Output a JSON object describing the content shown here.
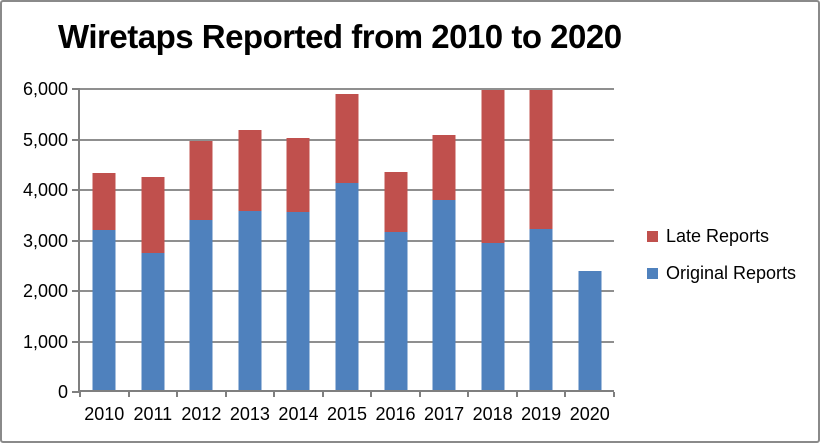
{
  "window": {
    "background": "#ffffff",
    "border_color": "#8a8a8a"
  },
  "chart_data": {
    "type": "bar",
    "stacked": true,
    "title": "Wiretaps Reported from 2010 to 2020",
    "categories": [
      "2010",
      "2011",
      "2012",
      "2013",
      "2014",
      "2015",
      "2016",
      "2017",
      "2018",
      "2019",
      "2020"
    ],
    "series": [
      {
        "name": "Original Reports",
        "color": "#4F81BD",
        "values": [
          3200,
          2750,
          3400,
          3580,
          3560,
          4130,
          3160,
          3810,
          2950,
          3220,
          2390
        ]
      },
      {
        "name": "Late Reports",
        "color": "#C0504D",
        "values": [
          1130,
          1500,
          1570,
          1610,
          1470,
          1770,
          1200,
          1280,
          3050,
          2780,
          0
        ]
      }
    ],
    "legend": [
      {
        "label": "Late Reports",
        "color": "#C0504D"
      },
      {
        "label": "Original Reports",
        "color": "#4F81BD"
      }
    ],
    "legend_position": "right",
    "xlabel": "",
    "ylabel": "",
    "ylim": [
      0,
      6000
    ],
    "ytick_step": 1000,
    "ytick_labels": [
      "0",
      "1,000",
      "2,000",
      "3,000",
      "4,000",
      "5,000",
      "6,000"
    ],
    "grid": true,
    "clip_to_ylim": true,
    "gridline_color": "#8f8f8f",
    "axis_color": "#7f7f7f"
  }
}
